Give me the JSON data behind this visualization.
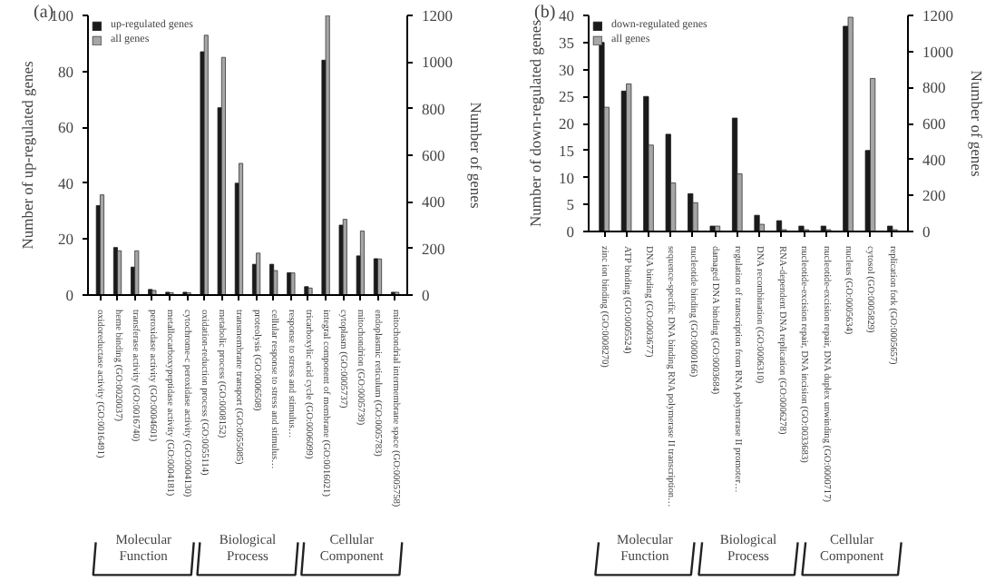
{
  "chart_data": [
    {
      "type": "bar",
      "title": "(a)",
      "ylabel": "Number of up-regulated genes",
      "y2label": "Number of genes",
      "categories": [
        "oxidoreductase activity (GO:0016491)",
        "heme binding (GO:0020037)",
        "transferase activity (GO:0016740)",
        "peroxidase activity (GO:0004601)",
        "metallocarboxypeptidase activity (GO:0004181)",
        "cytochrome-c peroxidase activity (GO:0004130)",
        "oxidation-reduction process (GO:0055114)",
        "metabolic process (GO:0008152)",
        "transmembrane transport (GO:0055085)",
        "proteolysis (GO:0006508)",
        "cellular response to stress and stimulus…",
        "response to stress and stimulus…",
        "tricarboxylic acid cycle (GO:0006099)",
        "integral component of membrane (GO:0016021)",
        "cytoplasm (GO:0005737)",
        "mitochondrion (GO:0005739)",
        "endoplasmic reticulum (GO:0005783)",
        "mitochondrial intermembrane space (GO:0005758)"
      ],
      "series": [
        {
          "name": "up-regulated genes",
          "color": "#1a1a1a",
          "values": [
            32,
            17,
            10,
            2,
            1,
            1,
            87,
            67,
            40,
            11,
            11,
            8,
            3,
            84,
            25,
            14,
            13,
            1
          ]
        },
        {
          "name": "all genes",
          "color": "#a6a6a6",
          "axis": "y2",
          "values": [
            430,
            190,
            190,
            20,
            10,
            10,
            1115,
            1020,
            565,
            180,
            105,
            95,
            30,
            1200,
            325,
            275,
            155,
            12
          ]
        }
      ],
      "ylim": [
        0,
        100
      ],
      "yticks": [
        0,
        20,
        40,
        60,
        80,
        100
      ],
      "y2lim": [
        0,
        1200
      ],
      "y2ticks": [
        0,
        200,
        400,
        600,
        800,
        1000,
        1200
      ],
      "legend": "top left",
      "grid": false,
      "annotations": [
        "Molecular\nFunction",
        "Biological\nProcess",
        "Cellular\nComponent"
      ]
    },
    {
      "type": "bar",
      "title": "(b)",
      "ylabel": "Number of down-regulated genes",
      "y2label": "Number of genes",
      "categories": [
        "zinc ion binding (GO:0008270)",
        "ATP binding (GO:0005524)",
        "DNA binding (GO:0003677)",
        "sequence-specific DNA binding RNA polymerase II transcription…",
        "nucleotide binding (GO:0000166)",
        "damaged DNA binding (GO:0003684)",
        "regulation of transcription from RNA polymerase II promoter…",
        "DNA recombination (GO:0006310)",
        "RNA-dependent DNA replication (GO:0006278)",
        "nucleotide-excision repair, DNA incision (GO:0033683)",
        "nucleotide-excision repair, DNA duplex unwinding (GO:0000717)",
        "nucleus (GO:0005634)",
        "cytosol (GO:0005829)",
        "replication fork (GO:0005657)"
      ],
      "series": [
        {
          "name": "down-regulated genes",
          "color": "#1a1a1a",
          "values": [
            35,
            26,
            25,
            18,
            7,
            1,
            21,
            3,
            2,
            1,
            1,
            38,
            15,
            1
          ]
        },
        {
          "name": "all genes",
          "color": "#a6a6a6",
          "axis": "y2",
          "values": [
            690,
            820,
            480,
            270,
            160,
            30,
            320,
            40,
            10,
            10,
            10,
            1190,
            850,
            10
          ]
        }
      ],
      "ylim": [
        0,
        40
      ],
      "yticks": [
        0,
        5,
        10,
        15,
        20,
        25,
        30,
        35,
        40
      ],
      "y2lim": [
        0,
        1200
      ],
      "y2ticks": [
        0,
        200,
        400,
        600,
        800,
        1000,
        1200
      ],
      "legend": "top left",
      "grid": false,
      "annotations": [
        "Molecular\nFunction",
        "Biological\nProcess",
        "Cellular\nComponent"
      ]
    }
  ]
}
